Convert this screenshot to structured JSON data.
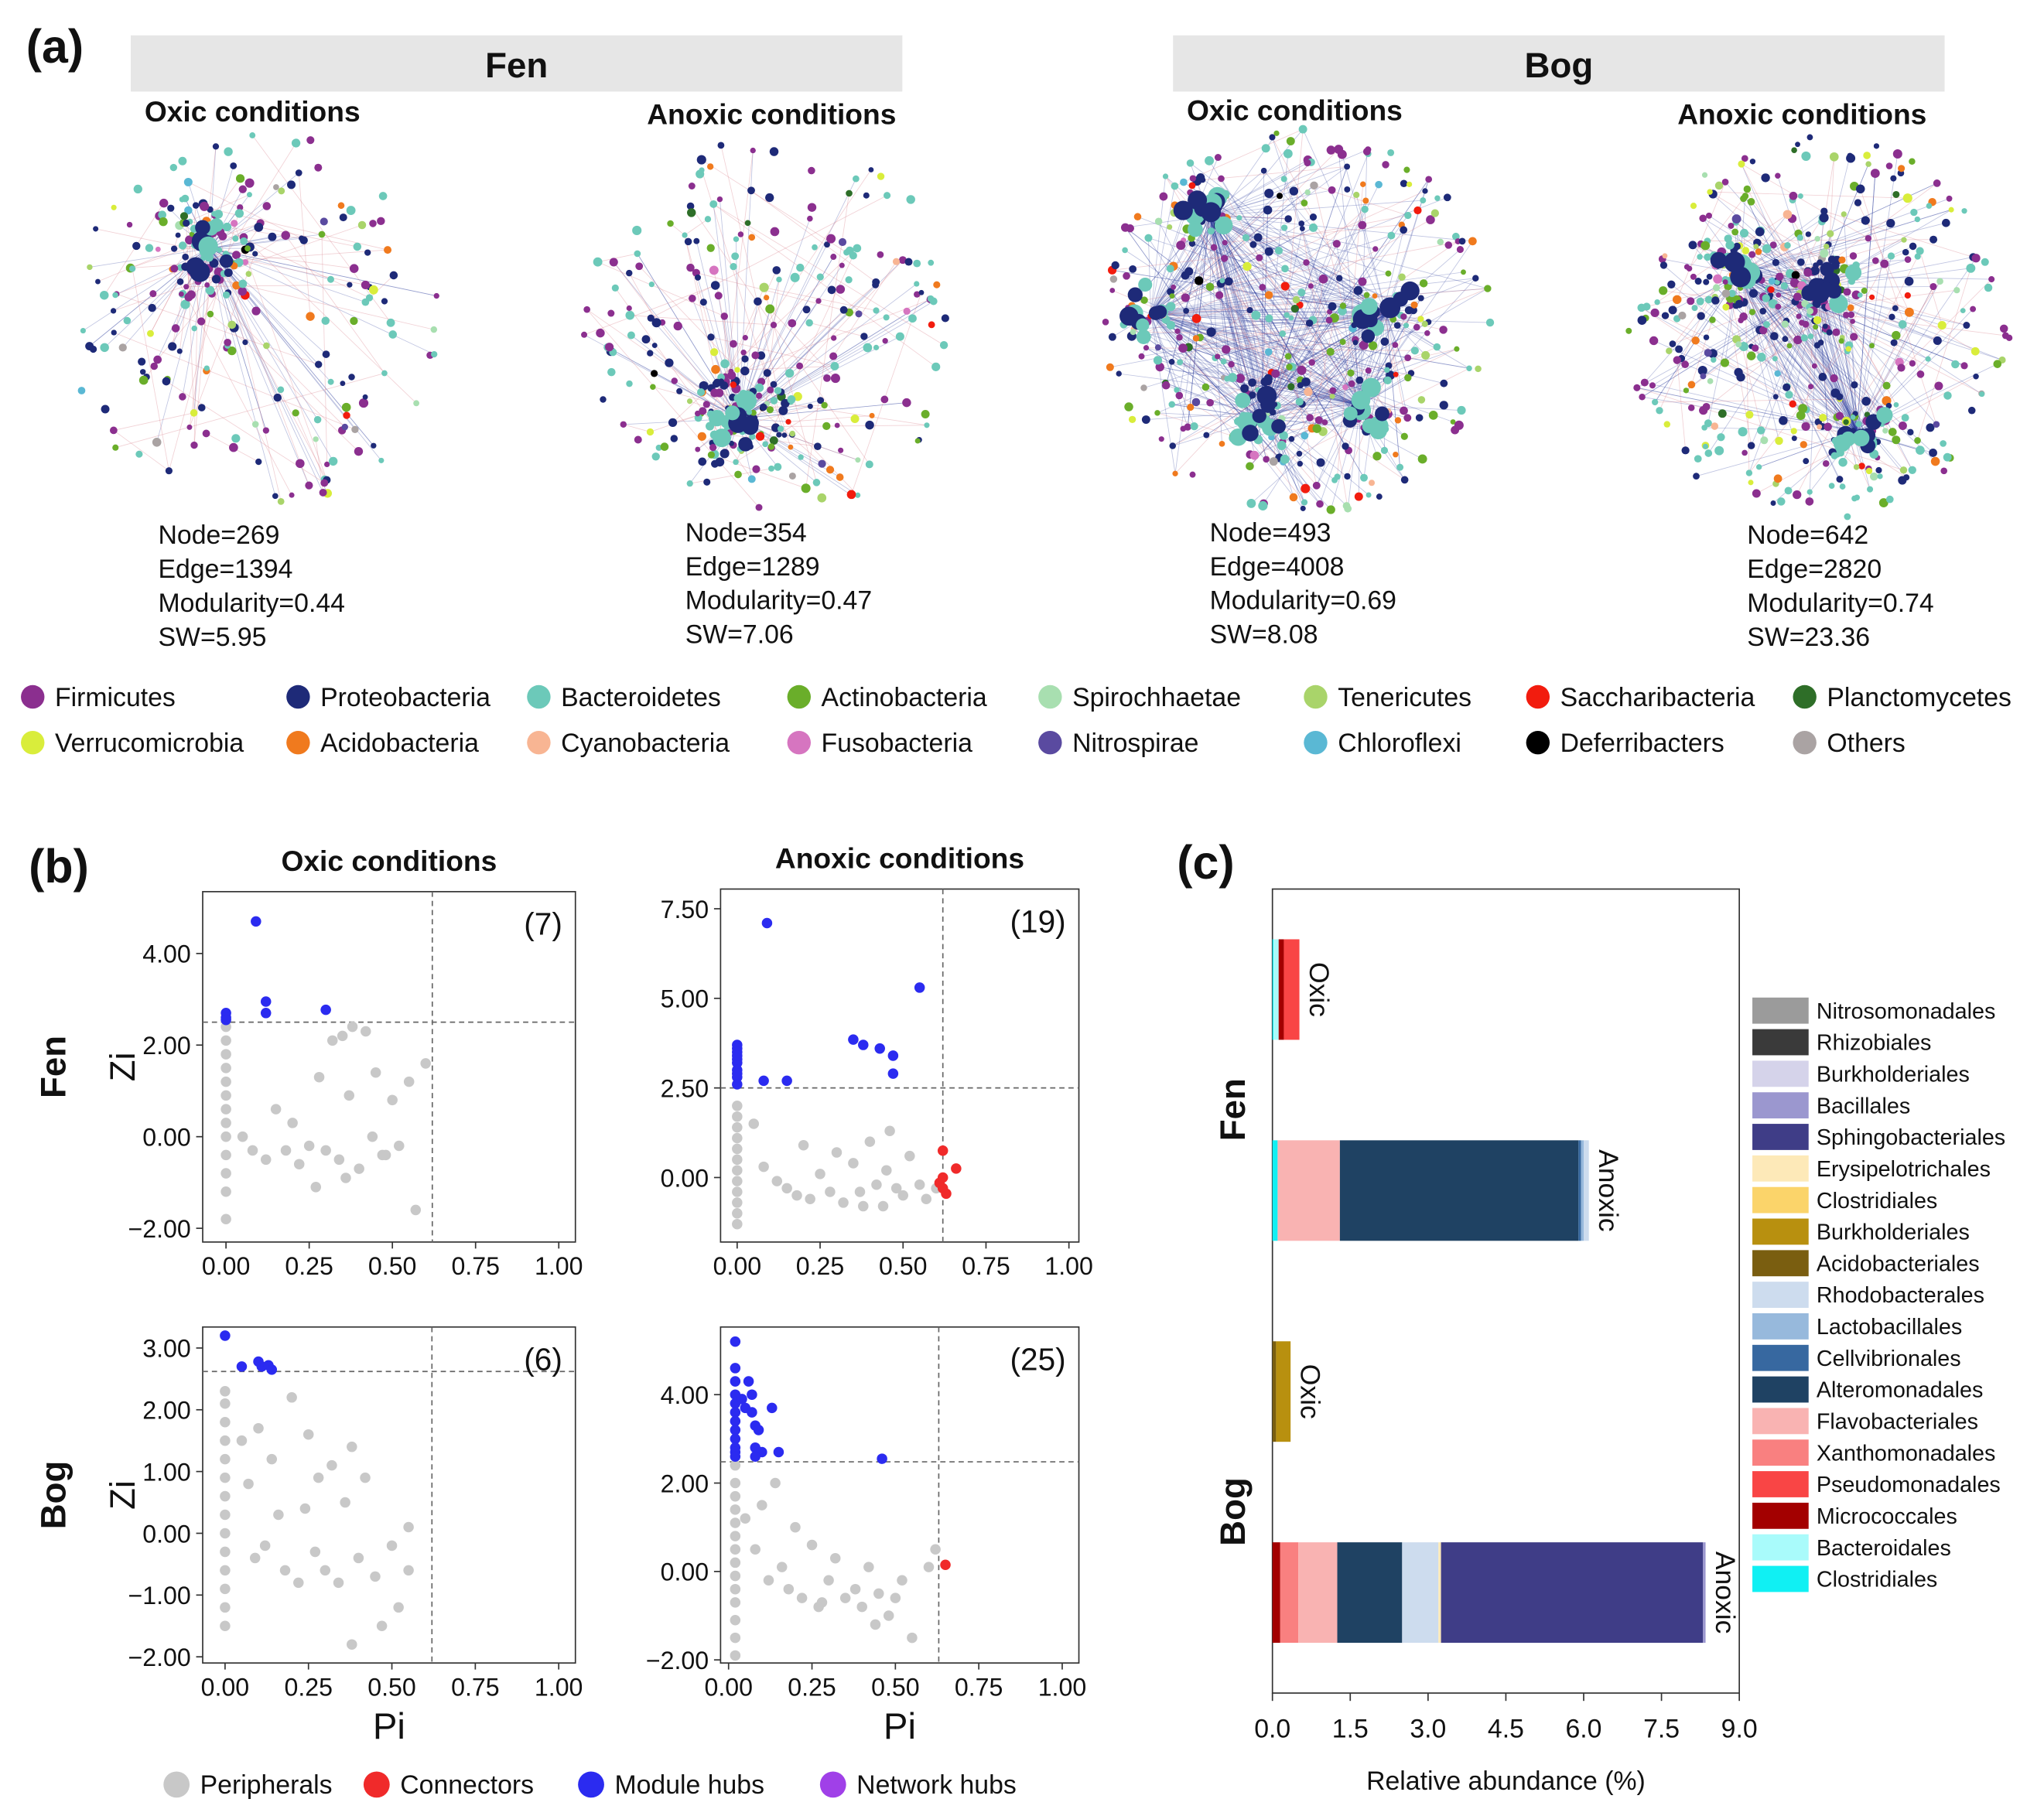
{
  "panel_labels": [
    "(a)",
    "(b)",
    "(c)"
  ],
  "networks": {
    "groups": [
      {
        "title": "Fen",
        "panels": [
          {
            "title": "Oxic conditions",
            "stats": [
              "Node=269",
              "Edge=1394",
              "Modularity=0.44",
              "SW=5.95"
            ]
          },
          {
            "title": "Anoxic conditions",
            "stats": [
              "Node=354",
              "Edge=1289",
              "Modularity=0.47",
              "SW=7.06"
            ]
          }
        ]
      },
      {
        "title": "Bog",
        "panels": [
          {
            "title": "Oxic conditions",
            "stats": [
              "Node=493",
              "Edge=4008",
              "Modularity=0.69",
              "SW=8.08"
            ]
          },
          {
            "title": "Anoxic conditions",
            "stats": [
              "Node=642",
              "Edge=2820",
              "Modularity=0.74",
              "SW=23.36"
            ]
          }
        ]
      }
    ],
    "legend": [
      {
        "name": "Firmicutes",
        "color": "#8b2f8f"
      },
      {
        "name": "Proteobacteria",
        "color": "#1e2a78"
      },
      {
        "name": "Bacteroidetes",
        "color": "#6cc9b9"
      },
      {
        "name": "Actinobacteria",
        "color": "#6aae2a"
      },
      {
        "name": "Spirochhaetae",
        "color": "#a8dfb0"
      },
      {
        "name": "Tenericutes",
        "color": "#a9d46a"
      },
      {
        "name": "Saccharibacteria",
        "color": "#f21c0e"
      },
      {
        "name": "Planctomycetes",
        "color": "#2e6e28"
      },
      {
        "name": "Verrucomicrobia",
        "color": "#d9ed3b"
      },
      {
        "name": "Acidobacteria",
        "color": "#f07a1e"
      },
      {
        "name": "Cyanobacteria",
        "color": "#f8b593"
      },
      {
        "name": "Fusobacteria",
        "color": "#d675c0"
      },
      {
        "name": "Nitrospirae",
        "color": "#5a4aa0"
      },
      {
        "name": "Chloroflexi",
        "color": "#5ab8d4"
      },
      {
        "name": "Deferribacters",
        "color": "#000000"
      },
      {
        "name": "Others",
        "color": "#aaa3a3"
      }
    ]
  },
  "chart_data": [
    {
      "type": "scatter",
      "title": "Oxic conditions",
      "row_label": "Fen",
      "ylabel": "Zi",
      "annotation": "(7)",
      "xlim": [
        -0.07,
        1.05
      ],
      "ylim": [
        -2.3,
        5.35
      ],
      "xticks": [
        {
          "value": 0,
          "label": "0.00"
        },
        0.25,
        {
          "value": 0.5,
          "label": "0.50"
        },
        0.75,
        {
          "value": 1,
          "label": "1.00"
        }
      ],
      "yticks": [
        {
          "value": -2,
          "label": "−2.00"
        },
        {
          "value": 0,
          "label": "0.00"
        },
        {
          "value": 2,
          "label": "2.00"
        },
        {
          "value": 4,
          "label": "4.00"
        }
      ],
      "thresholds": {
        "x": 0.62,
        "y": 2.5
      },
      "series": [
        {
          "name": "Peripherals",
          "color": "#c8c8c8",
          "x": [
            0,
            0,
            0,
            0,
            0,
            0,
            0,
            0,
            0,
            0,
            0,
            0,
            0,
            0.05,
            0.08,
            0.12,
            0.15,
            0.18,
            0.2,
            0.22,
            0.25,
            0.28,
            0.3,
            0.32,
            0.34,
            0.35,
            0.37,
            0.38,
            0.4,
            0.42,
            0.44,
            0.45,
            0.47,
            0.5,
            0.52,
            0.55,
            0.57,
            0.6,
            0.27,
            0.36,
            0.48
          ],
          "values": [
            -1.8,
            -1.2,
            -0.8,
            -0.4,
            0,
            0.3,
            0.6,
            0.9,
            1.2,
            1.5,
            1.8,
            2.1,
            2.4,
            0,
            -0.3,
            -0.5,
            0.6,
            -0.3,
            0.3,
            -0.6,
            -0.2,
            1.3,
            -0.3,
            2.1,
            -0.5,
            2.2,
            0.9,
            2.4,
            -0.7,
            2.3,
            0,
            1.4,
            -0.4,
            0.8,
            -0.2,
            1.2,
            -1.6,
            1.6,
            -1.1,
            -0.9,
            -0.4
          ]
        },
        {
          "name": "Connectors",
          "color": "#f02a2a",
          "x": [],
          "values": []
        },
        {
          "name": "Module hubs",
          "color": "#2b2bf0",
          "x": [
            0,
            0,
            0,
            0.09,
            0.12,
            0.12,
            0.3
          ],
          "values": [
            2.7,
            2.6,
            2.55,
            4.7,
            2.95,
            2.7,
            2.77
          ]
        },
        {
          "name": "Network hubs",
          "color": "#a040e8",
          "x": [],
          "values": []
        }
      ]
    },
    {
      "type": "scatter",
      "title": "Anoxic conditions",
      "annotation": "(19)",
      "xlim": [
        -0.05,
        1.03
      ],
      "ylim": [
        -1.8,
        8.05
      ],
      "xticks": [
        {
          "value": 0,
          "label": "0.00"
        },
        0.25,
        {
          "value": 0.5,
          "label": "0.50"
        },
        0.75,
        {
          "value": 1,
          "label": "1.00"
        }
      ],
      "yticks": [
        {
          "value": 0,
          "label": "0.00"
        },
        {
          "value": 2.5,
          "label": "2.50"
        },
        {
          "value": 5,
          "label": "5.00"
        },
        {
          "value": 7.5,
          "label": "7.50"
        }
      ],
      "thresholds": {
        "x": 0.62,
        "y": 2.5
      },
      "series": [
        {
          "name": "Peripherals",
          "color": "#c8c8c8",
          "x": [
            0,
            0,
            0,
            0,
            0,
            0,
            0,
            0,
            0,
            0,
            0,
            0,
            0.05,
            0.08,
            0.12,
            0.15,
            0.18,
            0.2,
            0.22,
            0.25,
            0.28,
            0.3,
            0.32,
            0.35,
            0.37,
            0.4,
            0.42,
            0.44,
            0.46,
            0.48,
            0.5,
            0.52,
            0.55,
            0.57,
            0.6,
            0.38,
            0.45
          ],
          "values": [
            -1.3,
            -1.0,
            -0.7,
            -0.4,
            -0.1,
            0.2,
            0.5,
            0.8,
            1.1,
            1.4,
            1.7,
            2.0,
            1.5,
            0.3,
            -0.1,
            -0.3,
            -0.5,
            0.9,
            -0.6,
            0.1,
            -0.4,
            0.7,
            -0.7,
            0.4,
            -0.4,
            1.0,
            -0.2,
            -0.8,
            1.3,
            -0.3,
            -0.5,
            0.6,
            -0.2,
            -0.6,
            -0.3,
            -0.8,
            0.2
          ]
        },
        {
          "name": "Connectors",
          "color": "#f02a2a",
          "x": [
            0.62,
            0.66,
            0.62,
            0.62,
            0.63,
            0.61
          ],
          "values": [
            0.75,
            0.25,
            0.0,
            -0.3,
            -0.45,
            -0.15
          ]
        },
        {
          "name": "Module hubs",
          "color": "#2b2bf0",
          "x": [
            0,
            0,
            0,
            0,
            0,
            0,
            0,
            0,
            0.09,
            0.08,
            0.15,
            0.35,
            0.38,
            0.43,
            0.47,
            0.47,
            0.55,
            0,
            0
          ],
          "values": [
            3.7,
            3.6,
            3.5,
            3.3,
            3.2,
            3.0,
            2.8,
            2.6,
            7.1,
            2.7,
            2.7,
            3.85,
            3.7,
            3.6,
            3.4,
            2.9,
            5.3,
            3.4,
            2.9
          ]
        }
      ]
    },
    {
      "type": "scatter",
      "row_label": "Bog",
      "ylabel": "Zi",
      "xlabel": "Pi",
      "annotation": "(6)",
      "xlim": [
        -0.067,
        1.05
      ],
      "ylim": [
        -2.1,
        3.34
      ],
      "xticks": [
        {
          "value": 0,
          "label": "0.00"
        },
        0.25,
        {
          "value": 0.5,
          "label": "0.50"
        },
        0.75,
        {
          "value": 1,
          "label": "1.00"
        }
      ],
      "yticks": [
        {
          "value": -2,
          "label": "−2.00"
        },
        {
          "value": -1,
          "label": "−1.00"
        },
        {
          "value": 0,
          "label": "0.00"
        },
        {
          "value": 1,
          "label": "1.00"
        },
        {
          "value": 2,
          "label": "2.00"
        },
        {
          "value": 3,
          "label": "3.00"
        }
      ],
      "thresholds": {
        "x": 0.62,
        "y": 2.62
      },
      "series": [
        {
          "name": "Peripherals",
          "color": "#c8c8c8",
          "x": [
            0,
            0,
            0,
            0,
            0,
            0,
            0,
            0,
            0,
            0,
            0,
            0,
            0,
            0,
            0.05,
            0.07,
            0.09,
            0.1,
            0.12,
            0.14,
            0.16,
            0.18,
            0.2,
            0.22,
            0.24,
            0.25,
            0.27,
            0.28,
            0.3,
            0.32,
            0.34,
            0.36,
            0.38,
            0.38,
            0.4,
            0.42,
            0.45,
            0.47,
            0.5,
            0.52,
            0.55,
            0.55
          ],
          "values": [
            -1.5,
            -1.2,
            -0.9,
            -0.6,
            -0.3,
            0,
            0.3,
            0.6,
            0.9,
            1.2,
            1.5,
            1.8,
            2.1,
            2.3,
            1.5,
            0.8,
            -0.4,
            1.7,
            -0.2,
            1.2,
            0.3,
            -0.6,
            2.2,
            -0.8,
            0.4,
            1.6,
            -0.3,
            0.9,
            -0.6,
            1.1,
            -0.8,
            0.5,
            1.4,
            -1.8,
            -0.4,
            0.9,
            -0.7,
            -1.5,
            -0.2,
            -1.2,
            0.1,
            -0.6
          ]
        },
        {
          "name": "Module hubs",
          "color": "#2b2bf0",
          "x": [
            0,
            0.05,
            0.1,
            0.11,
            0.13,
            0.14
          ],
          "values": [
            3.2,
            2.7,
            2.78,
            2.7,
            2.72,
            2.65
          ]
        }
      ]
    },
    {
      "type": "scatter",
      "xlabel": "Pi",
      "annotation": "(25)",
      "xlim": [
        -0.024,
        1.05
      ],
      "ylim": [
        -2.07,
        5.53
      ],
      "xticks": [
        {
          "value": 0,
          "label": "0.00"
        },
        0.25,
        {
          "value": 0.5,
          "label": "0.50"
        },
        0.75,
        {
          "value": 1,
          "label": "1.00"
        }
      ],
      "yticks": [
        {
          "value": -2,
          "label": "−2.00"
        },
        {
          "value": 0,
          "label": "0.00"
        },
        {
          "value": 2,
          "label": "2.00"
        },
        {
          "value": 4,
          "label": "4.00"
        }
      ],
      "thresholds": {
        "x": 0.63,
        "y": 2.48
      },
      "series": [
        {
          "name": "Peripherals",
          "color": "#c8c8c8",
          "x": [
            0.02,
            0.02,
            0.02,
            0.02,
            0.02,
            0.02,
            0.02,
            0.02,
            0.02,
            0.02,
            0.02,
            0.02,
            0.02,
            0.02,
            0.05,
            0.08,
            0.1,
            0.12,
            0.14,
            0.16,
            0.18,
            0.2,
            0.22,
            0.25,
            0.27,
            0.3,
            0.32,
            0.35,
            0.38,
            0.4,
            0.42,
            0.45,
            0.48,
            0.5,
            0.52,
            0.55,
            0.6,
            0.62,
            0.28,
            0.44
          ],
          "values": [
            -1.9,
            -1.5,
            -1.1,
            -0.7,
            -0.4,
            -0.1,
            0.2,
            0.5,
            0.8,
            1.1,
            1.4,
            1.7,
            2.0,
            2.4,
            1.2,
            0.5,
            1.5,
            -0.2,
            2.0,
            0.1,
            -0.4,
            1.0,
            -0.6,
            0.6,
            -0.8,
            -0.2,
            0.3,
            -0.6,
            -0.4,
            -0.8,
            0.1,
            -0.5,
            -1.0,
            -0.6,
            -0.2,
            -1.5,
            0.1,
            0.5,
            -0.7,
            -1.2
          ]
        },
        {
          "name": "Connectors",
          "color": "#f02a2a",
          "x": [
            0.65
          ],
          "values": [
            0.15
          ]
        },
        {
          "name": "Module hubs",
          "color": "#2b2bf0",
          "x": [
            0.02,
            0.02,
            0.02,
            0.02,
            0.02,
            0.02,
            0.02,
            0.02,
            0.02,
            0.02,
            0.02,
            0.02,
            0.04,
            0.05,
            0.06,
            0.07,
            0.07,
            0.08,
            0.08,
            0.09,
            0.1,
            0.13,
            0.15,
            0.08,
            0.46
          ],
          "values": [
            5.2,
            4.6,
            4.3,
            4.0,
            3.8,
            3.6,
            3.4,
            3.2,
            3.0,
            2.8,
            2.7,
            2.6,
            3.9,
            3.7,
            4.3,
            3.6,
            4.0,
            2.8,
            3.3,
            3.2,
            2.7,
            3.7,
            2.7,
            2.6,
            2.55
          ]
        }
      ]
    },
    {
      "type": "bar",
      "orientation": "horizontal",
      "stacked": true,
      "categories": [
        "Oxic",
        "Anoxic",
        "Oxic",
        "Anoxic"
      ],
      "groups": [
        "Fen",
        "Bog"
      ],
      "xlabel": "Relative abundance (%)",
      "xlim": [
        0,
        9.0
      ],
      "xticks": [
        {
          "value": 0,
          "label": "0.0"
        },
        1.5,
        {
          "value": 3,
          "label": "3.0"
        },
        4.5,
        {
          "value": 6,
          "label": "6.0"
        },
        7.5,
        {
          "value": 9,
          "label": "9.0"
        }
      ],
      "series": [
        {
          "name": "Nitrosomonadales",
          "color": "#9b9b9b",
          "values": [
            0,
            0,
            0,
            0
          ]
        },
        {
          "name": "Rhizobiales",
          "color": "#3a3a3a",
          "values": [
            0,
            0,
            0,
            0
          ]
        },
        {
          "name": "Burkholderiales",
          "color": "#d5d3ea",
          "values": [
            0,
            0,
            0,
            0
          ]
        },
        {
          "name": "Bacillales",
          "color": "#9b97cf",
          "values": [
            0,
            0,
            0,
            0.05
          ]
        },
        {
          "name": "Sphingobacteriales",
          "color": "#3f3d87",
          "values": [
            0,
            0,
            0,
            5.05
          ]
        },
        {
          "name": "Erysipelotrichales",
          "color": "#fde9b8",
          "values": [
            0,
            0,
            0,
            0.05
          ]
        },
        {
          "name": "Clostridiales",
          "color": "#fbd46a",
          "values": [
            0,
            0,
            0,
            0
          ]
        },
        {
          "name": "Burkholderiales",
          "color": "#b8900f",
          "values": [
            0,
            0,
            0.28,
            0
          ]
        },
        {
          "name": "Acidobacteriales",
          "color": "#7a5e10",
          "values": [
            0,
            0,
            0.07,
            0
          ]
        },
        {
          "name": "Rhodobacterales",
          "color": "#cddcee",
          "values": [
            0,
            0.1,
            0,
            0.7
          ]
        },
        {
          "name": "Lactobacillales",
          "color": "#97b9dc",
          "values": [
            0,
            0.05,
            0,
            0
          ]
        },
        {
          "name": "Cellvibrionales",
          "color": "#3768a0",
          "values": [
            0,
            0.05,
            0,
            0
          ]
        },
        {
          "name": "Alteromonadales",
          "color": "#1f4263",
          "values": [
            0,
            4.6,
            0,
            1.25
          ]
        },
        {
          "name": "Flavobacteriales",
          "color": "#f9b3b2",
          "values": [
            0,
            1.2,
            0,
            0.75
          ]
        },
        {
          "name": "Xanthomonadales",
          "color": "#f98080",
          "values": [
            0,
            0,
            0,
            0.35
          ]
        },
        {
          "name": "Pseudomonadales",
          "color": "#f94545",
          "values": [
            0.3,
            0,
            0,
            0
          ]
        },
        {
          "name": "Micrococcales",
          "color": "#a30000",
          "values": [
            0.1,
            0,
            0,
            0.15
          ]
        },
        {
          "name": "Bacteroidales",
          "color": "#a9fbfb",
          "values": [
            0.1,
            0,
            0,
            0
          ]
        },
        {
          "name": "Clostridiales",
          "color": "#10f0f3",
          "values": [
            0.02,
            0.1,
            0,
            0
          ]
        }
      ]
    }
  ]
}
